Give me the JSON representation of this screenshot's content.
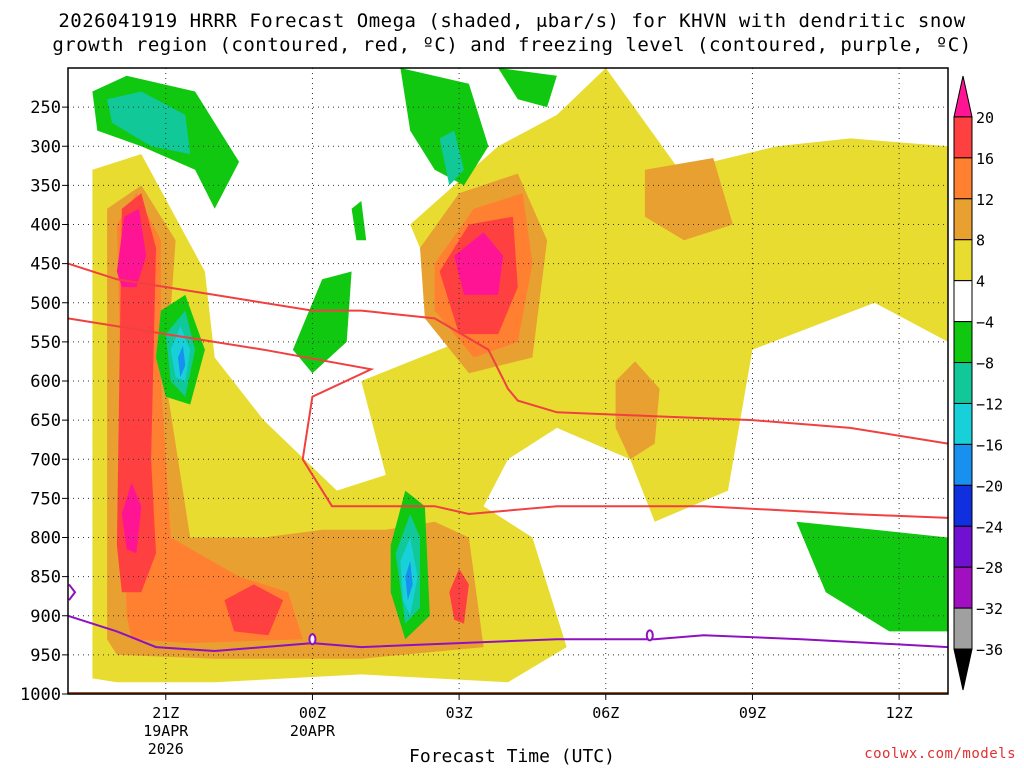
{
  "header": {
    "title_line1": "2026041919 HRRR Forecast Omega (shaded, μbar/s) for KHVN with dendritic snow",
    "title_line2": "growth region (contoured, red, ºC) and freezing level (contoured, purple, ºC)"
  },
  "footer": {
    "credit": "coolwx.com/models"
  },
  "chart_data": {
    "type": "heatmap",
    "xlabel": "Forecast Time (UTC)",
    "ylabel": "",
    "x_ticks": [
      {
        "label": "21Z",
        "sub": [
          "19APR",
          "2026"
        ],
        "hour": 2
      },
      {
        "label": "00Z",
        "sub": [
          "20APR"
        ],
        "hour": 5
      },
      {
        "label": "03Z",
        "sub": [],
        "hour": 8
      },
      {
        "label": "06Z",
        "sub": [],
        "hour": 11
      },
      {
        "label": "09Z",
        "sub": [],
        "hour": 14
      },
      {
        "label": "12Z",
        "sub": [],
        "hour": 17
      }
    ],
    "x_range_hours": [
      0,
      18
    ],
    "y_ticks_hpa": [
      250,
      300,
      350,
      400,
      450,
      500,
      550,
      600,
      650,
      700,
      750,
      800,
      850,
      900,
      950,
      1000
    ],
    "y_range_hpa": [
      200,
      1000
    ],
    "colorbar": {
      "labels": [
        "20",
        "16",
        "12",
        "8",
        "4",
        "−4",
        "−8",
        "−12",
        "−16",
        "−20",
        "−24",
        "−28",
        "−32",
        "−36"
      ],
      "colors": [
        "#ff1493",
        "#ff4040",
        "#ff8030",
        "#e8a030",
        "#e8dc30",
        "#ffffff",
        "#10c810",
        "#10c898",
        "#18d0d8",
        "#1890f0",
        "#1030e0",
        "#7010d0",
        "#a010c0",
        "#a0a0a0",
        "#000000"
      ]
    },
    "omega_regions": [
      {
        "value": 6,
        "color": "#e8dc30",
        "pts": [
          [
            0.5,
            980
          ],
          [
            0.5,
            330
          ],
          [
            1.5,
            310
          ],
          [
            2.8,
            460
          ],
          [
            3,
            570
          ],
          [
            4,
            650
          ],
          [
            5.5,
            740
          ],
          [
            6.5,
            720
          ],
          [
            6,
            600
          ],
          [
            8,
            550
          ],
          [
            7,
            400
          ],
          [
            8.8,
            300
          ],
          [
            10,
            260
          ],
          [
            11,
            200
          ],
          [
            12.5,
            330
          ],
          [
            14.5,
            300
          ],
          [
            16,
            290
          ],
          [
            18,
            300
          ],
          [
            18,
            550
          ],
          [
            16.5,
            500
          ],
          [
            14,
            560
          ],
          [
            13.5,
            740
          ],
          [
            12,
            780
          ],
          [
            11.5,
            700
          ],
          [
            10,
            660
          ],
          [
            9,
            700
          ],
          [
            8.5,
            760
          ],
          [
            9.5,
            800
          ],
          [
            10.2,
            940
          ],
          [
            9,
            985
          ],
          [
            6,
            975
          ],
          [
            3,
            985
          ],
          [
            1,
            985
          ]
        ]
      },
      {
        "value": 10,
        "color": "#e8a030",
        "pts": [
          [
            0.8,
            930
          ],
          [
            0.8,
            380
          ],
          [
            1.5,
            350
          ],
          [
            2.2,
            420
          ],
          [
            2,
            600
          ],
          [
            2.3,
            720
          ],
          [
            2.5,
            800
          ],
          [
            4,
            800
          ],
          [
            5.2,
            790
          ],
          [
            6.5,
            790
          ],
          [
            7.5,
            780
          ],
          [
            8.2,
            800
          ],
          [
            8.5,
            940
          ],
          [
            6,
            955
          ],
          [
            3,
            955
          ],
          [
            1,
            950
          ]
        ]
      },
      {
        "value": 10,
        "color": "#e8a030",
        "pts": [
          [
            7.2,
            430
          ],
          [
            8,
            360
          ],
          [
            9.2,
            335
          ],
          [
            9.8,
            420
          ],
          [
            9.5,
            570
          ],
          [
            8.2,
            590
          ],
          [
            7.3,
            520
          ]
        ]
      },
      {
        "value": 10,
        "color": "#e8a030",
        "pts": [
          [
            11.2,
            600
          ],
          [
            11.6,
            575
          ],
          [
            12.1,
            610
          ],
          [
            12,
            680
          ],
          [
            11.5,
            700
          ],
          [
            11.2,
            660
          ]
        ]
      },
      {
        "value": 10,
        "color": "#e8a030",
        "pts": [
          [
            11.8,
            330
          ],
          [
            13.2,
            315
          ],
          [
            13.6,
            400
          ],
          [
            12.6,
            420
          ],
          [
            11.8,
            390
          ]
        ]
      },
      {
        "value": 14,
        "color": "#ff8030",
        "pts": [
          [
            1.2,
            900
          ],
          [
            1,
            400
          ],
          [
            1.4,
            360
          ],
          [
            1.9,
            420
          ],
          [
            1.9,
            600
          ],
          [
            2.1,
            800
          ],
          [
            3.5,
            850
          ],
          [
            4.5,
            870
          ],
          [
            4.8,
            930
          ],
          [
            2.5,
            935
          ],
          [
            1.3,
            930
          ]
        ]
      },
      {
        "value": 14,
        "color": "#ff8030",
        "pts": [
          [
            7.5,
            450
          ],
          [
            8.3,
            380
          ],
          [
            9.3,
            360
          ],
          [
            9.5,
            450
          ],
          [
            9.2,
            550
          ],
          [
            8.3,
            570
          ],
          [
            7.5,
            510
          ]
        ]
      },
      {
        "value": 18,
        "color": "#ff4040",
        "pts": [
          [
            1,
            810
          ],
          [
            1.1,
            380
          ],
          [
            1.5,
            360
          ],
          [
            1.8,
            430
          ],
          [
            1.7,
            700
          ],
          [
            1.8,
            820
          ],
          [
            1.5,
            870
          ],
          [
            1.1,
            870
          ]
        ]
      },
      {
        "value": 18,
        "color": "#ff4040",
        "pts": [
          [
            3.2,
            880
          ],
          [
            3.8,
            860
          ],
          [
            4.4,
            880
          ],
          [
            4.1,
            925
          ],
          [
            3.4,
            920
          ]
        ]
      },
      {
        "value": 18,
        "color": "#ff4040",
        "pts": [
          [
            7.6,
            460
          ],
          [
            8.2,
            400
          ],
          [
            9.1,
            390
          ],
          [
            9.2,
            480
          ],
          [
            8.8,
            540
          ],
          [
            8,
            540
          ]
        ]
      },
      {
        "value": 18,
        "color": "#ff4040",
        "pts": [
          [
            7.8,
            870
          ],
          [
            8,
            840
          ],
          [
            8.2,
            860
          ],
          [
            8.1,
            910
          ],
          [
            7.9,
            905
          ]
        ]
      },
      {
        "value": 22,
        "color": "#ff1493",
        "pts": [
          [
            1,
            460
          ],
          [
            1.15,
            390
          ],
          [
            1.45,
            380
          ],
          [
            1.6,
            440
          ],
          [
            1.4,
            480
          ],
          [
            1.1,
            480
          ]
        ]
      },
      {
        "value": 22,
        "color": "#ff1493",
        "pts": [
          [
            1.1,
            770
          ],
          [
            1.3,
            730
          ],
          [
            1.5,
            760
          ],
          [
            1.4,
            820
          ],
          [
            1.2,
            815
          ]
        ]
      },
      {
        "value": 22,
        "color": "#ff1493",
        "pts": [
          [
            7.9,
            440
          ],
          [
            8.5,
            410
          ],
          [
            8.9,
            440
          ],
          [
            8.8,
            490
          ],
          [
            8.1,
            490
          ]
        ]
      },
      {
        "value": -6,
        "color": "#10c810",
        "pts": [
          [
            0.5,
            230
          ],
          [
            1.2,
            210
          ],
          [
            2.6,
            230
          ],
          [
            3.5,
            320
          ],
          [
            3,
            380
          ],
          [
            2.6,
            330
          ],
          [
            1.5,
            300
          ],
          [
            0.6,
            280
          ]
        ]
      },
      {
        "value": -6,
        "color": "#10c810",
        "pts": [
          [
            6.8,
            200
          ],
          [
            8.2,
            220
          ],
          [
            8.6,
            300
          ],
          [
            8.1,
            350
          ],
          [
            7.5,
            330
          ],
          [
            7,
            280
          ]
        ]
      },
      {
        "value": -6,
        "color": "#10c810",
        "pts": [
          [
            8.8,
            200
          ],
          [
            10,
            210
          ],
          [
            9.8,
            250
          ],
          [
            9.2,
            240
          ]
        ]
      },
      {
        "value": -6,
        "color": "#10c810",
        "pts": [
          [
            1.9,
            510
          ],
          [
            2.4,
            490
          ],
          [
            2.8,
            560
          ],
          [
            2.5,
            630
          ],
          [
            2,
            620
          ],
          [
            1.8,
            570
          ]
        ]
      },
      {
        "value": -6,
        "color": "#10c810",
        "pts": [
          [
            4.6,
            560
          ],
          [
            5.2,
            470
          ],
          [
            5.8,
            460
          ],
          [
            5.7,
            550
          ],
          [
            5,
            590
          ]
        ]
      },
      {
        "value": -6,
        "color": "#10c810",
        "pts": [
          [
            6.6,
            810
          ],
          [
            6.9,
            740
          ],
          [
            7.3,
            760
          ],
          [
            7.4,
            900
          ],
          [
            6.9,
            930
          ],
          [
            6.6,
            870
          ]
        ]
      },
      {
        "value": -6,
        "color": "#10c810",
        "pts": [
          [
            14.9,
            780
          ],
          [
            16.5,
            790
          ],
          [
            18,
            800
          ],
          [
            18,
            920
          ],
          [
            16.8,
            920
          ],
          [
            15.5,
            870
          ]
        ]
      },
      {
        "value": -6,
        "color": "#10c810",
        "pts": [
          [
            5.8,
            380
          ],
          [
            6,
            370
          ],
          [
            6.1,
            420
          ],
          [
            5.9,
            420
          ]
        ]
      },
      {
        "value": -10,
        "color": "#10c898",
        "pts": [
          [
            0.8,
            240
          ],
          [
            1.5,
            230
          ],
          [
            2.4,
            260
          ],
          [
            2.5,
            310
          ],
          [
            1.7,
            300
          ],
          [
            0.9,
            270
          ]
        ]
      },
      {
        "value": -10,
        "color": "#10c898",
        "pts": [
          [
            7.6,
            290
          ],
          [
            7.9,
            280
          ],
          [
            8.1,
            330
          ],
          [
            7.8,
            350
          ]
        ]
      },
      {
        "value": -10,
        "color": "#10c898",
        "pts": [
          [
            2,
            540
          ],
          [
            2.4,
            510
          ],
          [
            2.6,
            560
          ],
          [
            2.4,
            620
          ],
          [
            2.1,
            600
          ]
        ]
      },
      {
        "value": -10,
        "color": "#10c898",
        "pts": [
          [
            6.7,
            820
          ],
          [
            7,
            770
          ],
          [
            7.2,
            800
          ],
          [
            7.2,
            890
          ],
          [
            6.9,
            910
          ]
        ]
      },
      {
        "value": -14,
        "color": "#18d0d8",
        "pts": [
          [
            2.1,
            560
          ],
          [
            2.3,
            530
          ],
          [
            2.5,
            560
          ],
          [
            2.4,
            600
          ],
          [
            2.2,
            595
          ]
        ]
      },
      {
        "value": -14,
        "color": "#18d0d8",
        "pts": [
          [
            6.8,
            830
          ],
          [
            7,
            800
          ],
          [
            7.15,
            850
          ],
          [
            7,
            900
          ],
          [
            6.85,
            880
          ]
        ]
      },
      {
        "value": -18,
        "color": "#1890f0",
        "pts": [
          [
            2.25,
            570
          ],
          [
            2.35,
            555
          ],
          [
            2.4,
            580
          ],
          [
            2.3,
            595
          ]
        ]
      },
      {
        "value": -18,
        "color": "#1890f0",
        "pts": [
          [
            6.9,
            850
          ],
          [
            7,
            830
          ],
          [
            7.05,
            860
          ],
          [
            6.95,
            880
          ]
        ]
      }
    ],
    "dgz_contours": [
      {
        "pts": [
          [
            0,
            450
          ],
          [
            1,
            470
          ],
          [
            3,
            490
          ],
          [
            5,
            510
          ],
          [
            6,
            510
          ],
          [
            7.5,
            520
          ],
          [
            8.6,
            560
          ],
          [
            9,
            610
          ],
          [
            9.2,
            625
          ],
          [
            10,
            640
          ],
          [
            12,
            645
          ],
          [
            14,
            650
          ],
          [
            16,
            660
          ],
          [
            18,
            680
          ]
        ]
      },
      {
        "pts": [
          [
            0,
            520
          ],
          [
            2,
            540
          ],
          [
            4,
            560
          ],
          [
            6.2,
            585
          ],
          [
            5,
            620
          ],
          [
            4.8,
            700
          ],
          [
            5.4,
            760
          ],
          [
            7.5,
            760
          ],
          [
            8.2,
            770
          ],
          [
            10,
            760
          ],
          [
            13,
            760
          ],
          [
            16,
            770
          ],
          [
            18,
            775
          ]
        ]
      }
    ],
    "freezing_contour": {
      "pts": [
        [
          0,
          900
        ],
        [
          1,
          920
        ],
        [
          1.8,
          940
        ],
        [
          3,
          945
        ],
        [
          5,
          935
        ],
        [
          6,
          940
        ],
        [
          8,
          935
        ],
        [
          10,
          930
        ],
        [
          12,
          930
        ],
        [
          13,
          925
        ],
        [
          15,
          930
        ],
        [
          18,
          940
        ]
      ]
    },
    "freezing_marks": [
      [
        5,
        930
      ],
      [
        11.9,
        925
      ]
    ],
    "ground_hpa": 1000
  }
}
